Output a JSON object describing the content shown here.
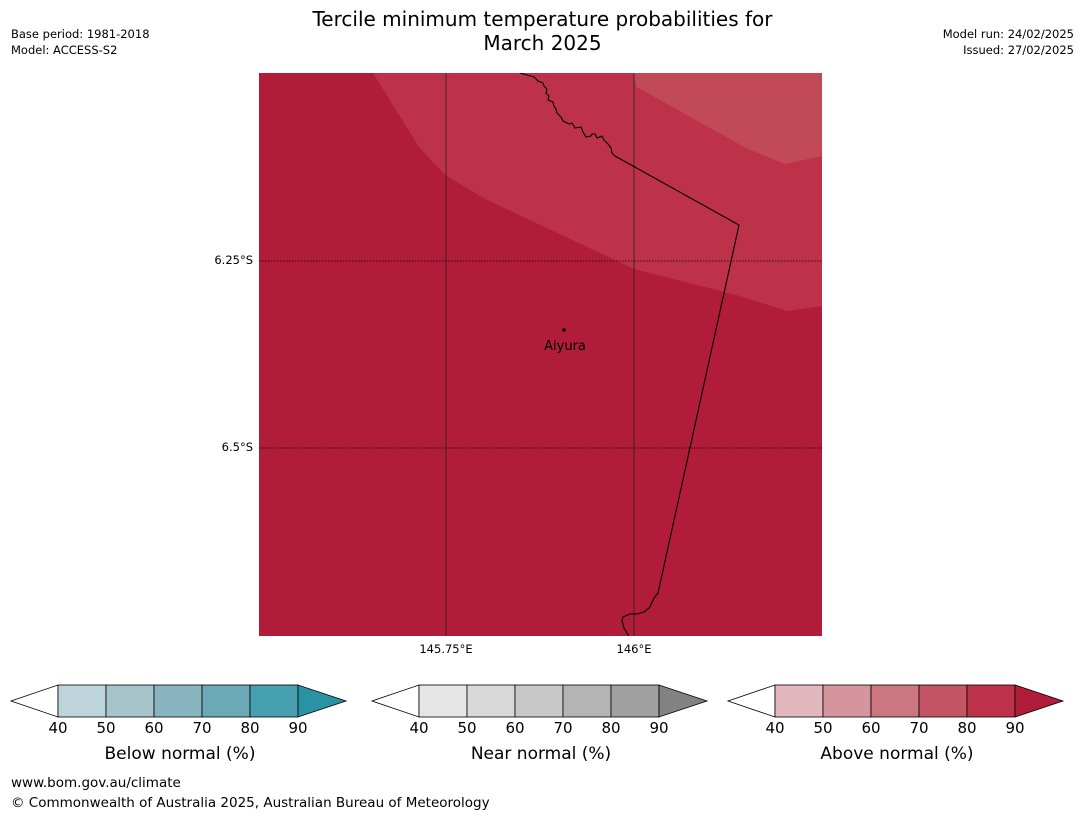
{
  "title_line1": "Tercile minimum temperature probabilities for",
  "title_line2": "March 2025",
  "base_period": "Base period: 1981-2018",
  "model": "Model: ACCESS-S2",
  "model_run": "Model run: 24/02/2025",
  "issued": "Issued: 27/02/2025",
  "map": {
    "lat_labels": [
      "6.25°S",
      "6.5°S"
    ],
    "lon_labels": [
      "145.75°E",
      "146°E"
    ],
    "place": "Aiyura",
    "fill_colors": [
      "#b11c38",
      "#bd3249",
      "#c24a57"
    ],
    "border_color": "#000000"
  },
  "legends": [
    {
      "id": "below",
      "label": "Below normal (%)",
      "ticks": [
        "40",
        "50",
        "60",
        "70",
        "80",
        "90"
      ],
      "colors": [
        "#ffffff",
        "#bdd4da",
        "#a6c5cb",
        "#89b5c0",
        "#6ba9b7",
        "#46a0b0",
        "#2b92a3"
      ]
    },
    {
      "id": "near",
      "label": "Near normal (%)",
      "ticks": [
        "40",
        "50",
        "60",
        "70",
        "80",
        "90"
      ],
      "colors": [
        "#ffffff",
        "#e6e6e6",
        "#d9d9d9",
        "#c8c8c8",
        "#b4b4b4",
        "#a0a0a0",
        "#828282"
      ]
    },
    {
      "id": "above",
      "label": "Above normal (%)",
      "ticks": [
        "40",
        "50",
        "60",
        "70",
        "80",
        "90"
      ],
      "colors": [
        "#ffffff",
        "#e2b7bd",
        "#d5959e",
        "#cc7680",
        "#c35564",
        "#bd3249",
        "#b11c38"
      ]
    }
  ],
  "footer_url": "www.bom.gov.au/climate",
  "footer_copy": "© Commonwealth of Australia 2025, Australian Bureau of Meteorology"
}
